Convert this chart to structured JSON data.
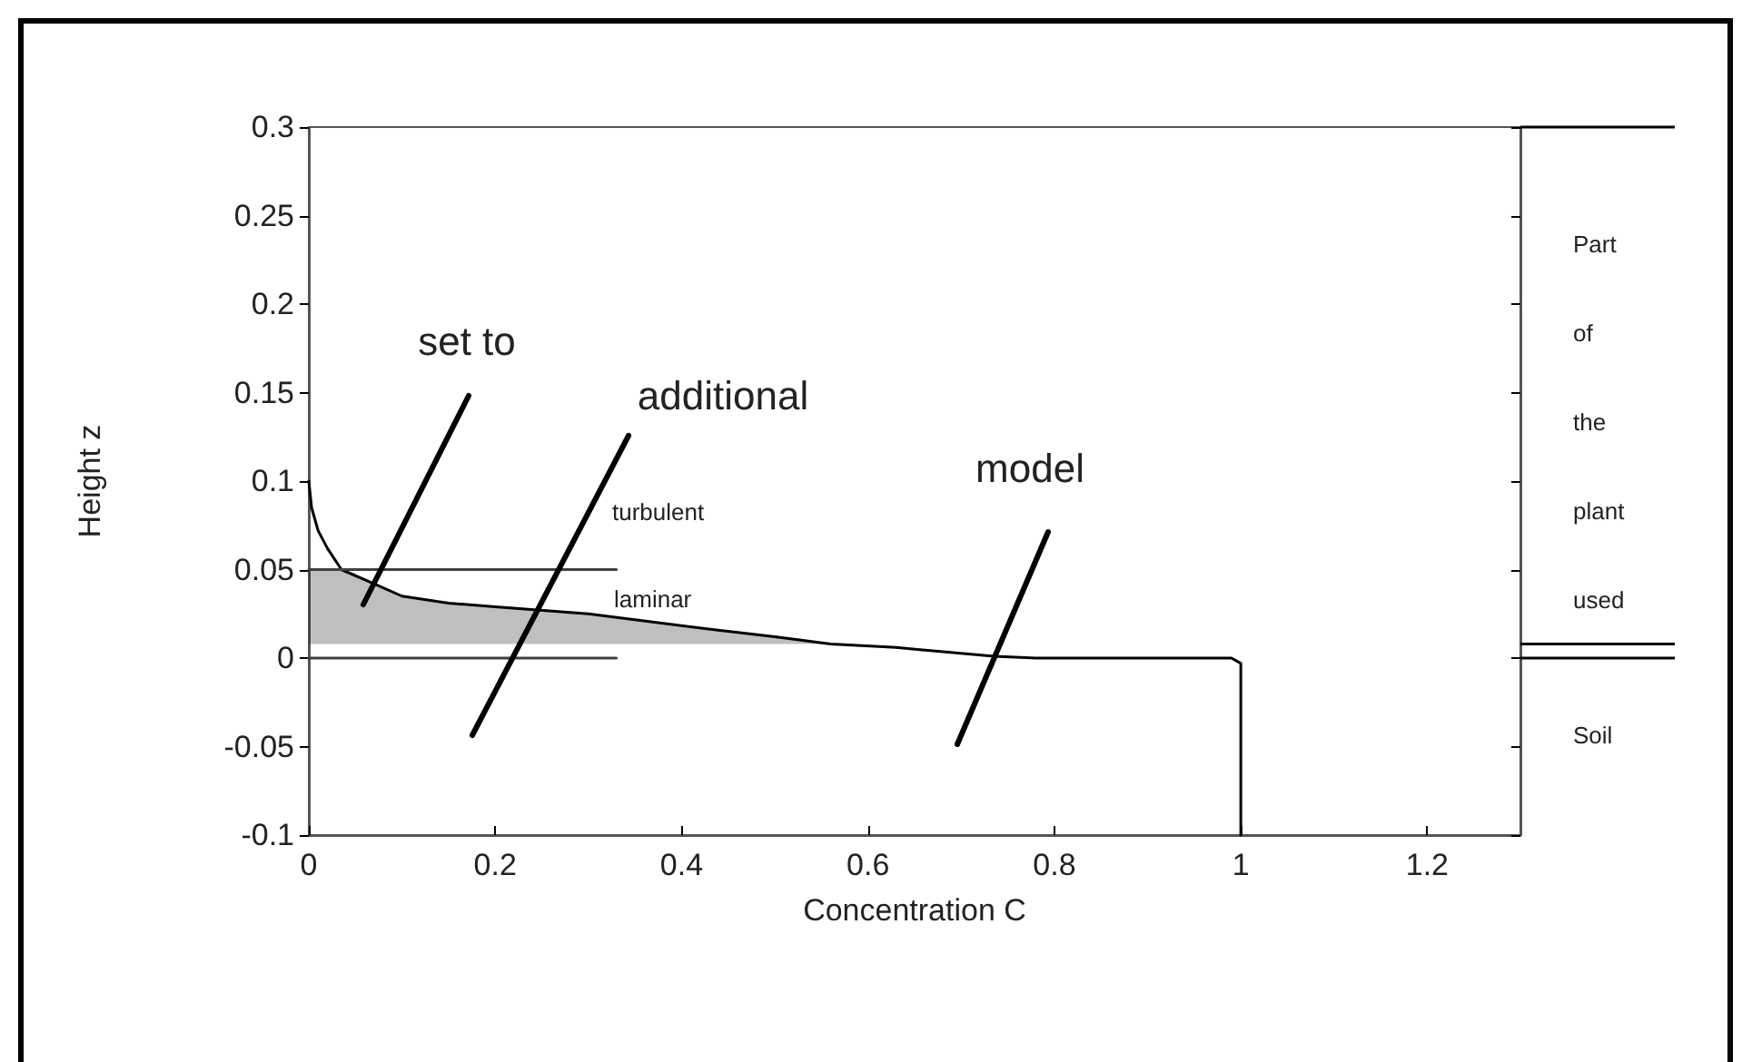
{
  "chart_data": {
    "type": "line",
    "xlabel": "Concentration C",
    "ylabel": "Height z",
    "xlim": [
      0,
      1.3
    ],
    "ylim": [
      -0.1,
      0.3
    ],
    "xticks": [
      0,
      0.2,
      0.4,
      0.6,
      0.8,
      1,
      1.2
    ],
    "yticks": [
      -0.1,
      -0.05,
      0,
      0.05,
      0.1,
      0.15,
      0.2,
      0.25,
      0.3
    ],
    "marker": "none",
    "line_style": "solid",
    "series": [
      {
        "type": "line",
        "color": "#000000",
        "x": [
          0,
          0.003,
          0.01,
          0.02,
          0.035,
          0.07,
          0.1,
          0.15,
          0.2,
          0.3,
          0.435,
          0.5,
          0.56,
          0.63,
          0.735,
          0.78,
          0.99,
          1,
          1
        ],
        "values": [
          0.1,
          0.085,
          0.072,
          0.062,
          0.05,
          0.042,
          0.035,
          0.031,
          0.029,
          0.025,
          0.016,
          0.012,
          0.008,
          0.006,
          0.001,
          0,
          0,
          -0.003,
          -0.1
        ],
        "lower": [
          0.008,
          0.008,
          0.008,
          0.008,
          0.008,
          0.008,
          0.008,
          0.008,
          0.008,
          0.008,
          0.008,
          0.008,
          0.008,
          null,
          null,
          null,
          null,
          null,
          null
        ],
        "upper": [
          0.05,
          0.05,
          0.05,
          0.05,
          0.05,
          0.042,
          0.035,
          0.031,
          0.029,
          0.025,
          0.016,
          0.012,
          0.008,
          null,
          null,
          null,
          null,
          null,
          null
        ]
      },
      {
        "type": "line",
        "color": "#404040",
        "x": [
          0,
          0.33
        ],
        "values": [
          0.05,
          0.05
        ]
      },
      {
        "type": "line",
        "color": "#404040",
        "x": [
          0,
          0.33
        ],
        "values": [
          0,
          0
        ]
      }
    ],
    "annotations": [
      "set to",
      "additional",
      "model",
      "turbulent",
      "laminar",
      "Part of the plant used",
      "Soil"
    ]
  }
}
